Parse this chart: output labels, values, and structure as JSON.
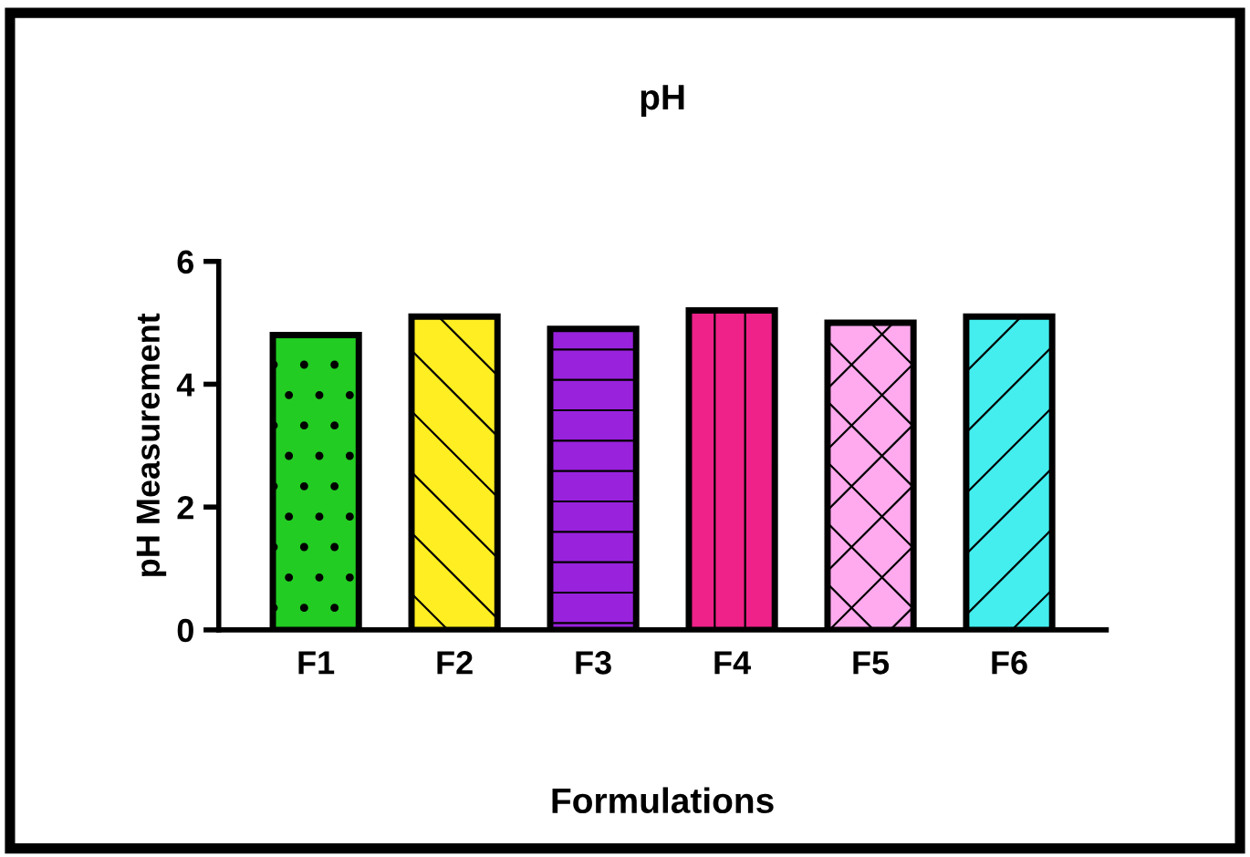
{
  "chart_data": {
    "type": "bar",
    "title": "pH",
    "xlabel": "Formulations",
    "ylabel": "pH Measurement",
    "categories": [
      "F1",
      "F2",
      "F3",
      "F4",
      "F5",
      "F6"
    ],
    "values": [
      4.8,
      5.1,
      4.9,
      5.2,
      5.0,
      5.1
    ],
    "colors": [
      "#22cc22",
      "#ffee22",
      "#9922dd",
      "#ee2288",
      "#ffaaee",
      "#44eeee"
    ],
    "ylim": [
      0,
      6
    ],
    "yticks": [
      0,
      2,
      4,
      6
    ],
    "grid": false,
    "legend": false
  }
}
